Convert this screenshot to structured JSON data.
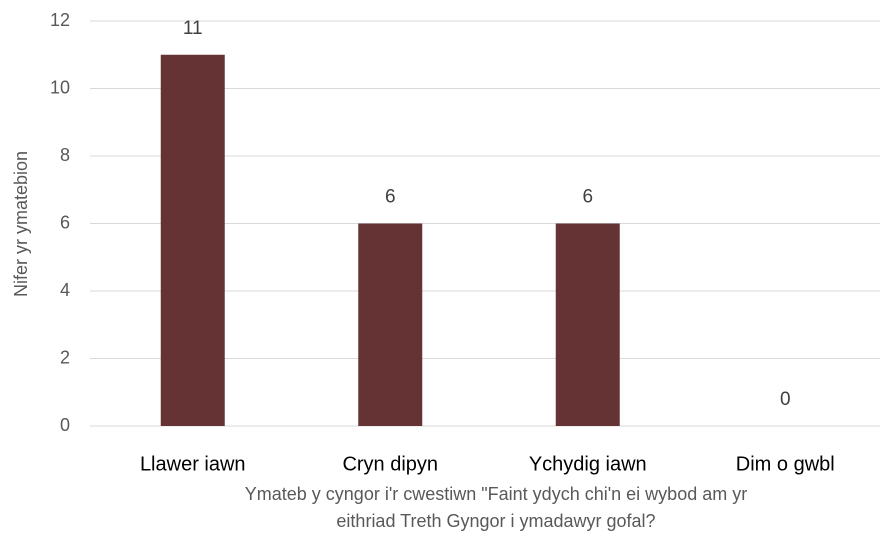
{
  "chart_data": {
    "type": "bar",
    "categories": [
      "Llawer iawn",
      "Cryn dipyn",
      "Ychydig iawn",
      "Dim o gwbl"
    ],
    "values": [
      11,
      6,
      6,
      0
    ],
    "color": "#663335",
    "ylim": [
      0,
      12
    ],
    "yticks": [
      0,
      2,
      4,
      6,
      8,
      10,
      12
    ],
    "grid": true,
    "ylabel": "Nifer yr ymatebion",
    "xlabel": [
      "Ymateb y cyngor i'r cwestiwn \"Faint ydych chi'n ei wybod am yr",
      "eithriad Treth Gyngor i ymadawyr gofal?"
    ]
  }
}
